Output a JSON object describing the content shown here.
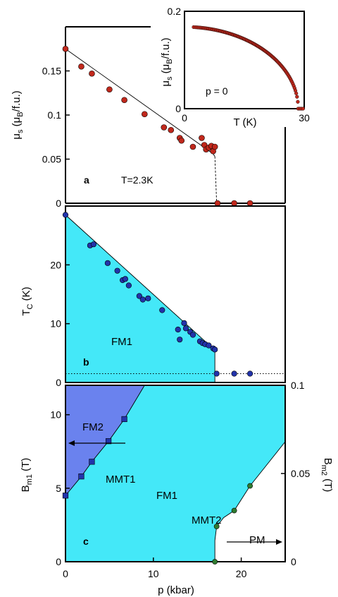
{
  "colors": {
    "fm1_fill": "#44e8f8",
    "fm2_fill": "#6a82ee",
    "red_marker": "#c0281c",
    "blue_marker": "#2233aa",
    "green_marker": "#2f7a2f",
    "line": "#000000"
  },
  "chart_data": [
    {
      "id": "panel-a",
      "type": "scatter",
      "panel_label": "a",
      "annotation": "T=2.3K",
      "xlabel": "",
      "ylabel": "μs (μB/f.u.)",
      "xlim": [
        0,
        25
      ],
      "ylim": [
        0,
        0.2
      ],
      "ytick_labels": [
        "0",
        "0.05",
        "0.1",
        "0.15"
      ],
      "points": [
        {
          "x": 0,
          "y": 0.175
        },
        {
          "x": 1.8,
          "y": 0.155
        },
        {
          "x": 3.0,
          "y": 0.147
        },
        {
          "x": 5.0,
          "y": 0.129
        },
        {
          "x": 6.7,
          "y": 0.117
        },
        {
          "x": 9.0,
          "y": 0.101
        },
        {
          "x": 11.2,
          "y": 0.086
        },
        {
          "x": 12.0,
          "y": 0.083
        },
        {
          "x": 13.0,
          "y": 0.074
        },
        {
          "x": 13.2,
          "y": 0.071
        },
        {
          "x": 14.5,
          "y": 0.064
        },
        {
          "x": 15.5,
          "y": 0.074
        },
        {
          "x": 15.8,
          "y": 0.066
        },
        {
          "x": 16.0,
          "y": 0.061
        },
        {
          "x": 16.3,
          "y": 0.063
        },
        {
          "x": 16.6,
          "y": 0.065
        },
        {
          "x": 16.8,
          "y": 0.059
        },
        {
          "x": 17.0,
          "y": 0.064
        },
        {
          "x": 17.3,
          "y": 0.0
        },
        {
          "x": 19.2,
          "y": 0.0
        },
        {
          "x": 21.0,
          "y": 0.0
        }
      ],
      "fit_line": [
        [
          0,
          0.175
        ],
        [
          16.8,
          0.056
        ],
        [
          17.0,
          0.053
        ]
      ],
      "dashed_drop": [
        [
          17.0,
          0.053
        ],
        [
          17.2,
          0.0
        ]
      ]
    },
    {
      "id": "panel-a-inset",
      "type": "scatter",
      "annotation": "p = 0",
      "xlabel": "T (K)",
      "ylabel": "μs (μB/f.u.)",
      "xlim": [
        0,
        30
      ],
      "ylim": [
        0,
        0.2
      ],
      "xtick_labels": [
        "0",
        "30"
      ],
      "ytick_labels": [
        "0",
        "0.2"
      ],
      "curve": {
        "Tc": 28.5,
        "m0": 0.168,
        "T_start": 2.3,
        "T_end": 28.4
      }
    },
    {
      "id": "panel-b",
      "type": "scatter",
      "panel_label": "b",
      "region_label": "FM1",
      "xlabel": "",
      "ylabel": "TC (K)",
      "xlim": [
        0,
        25
      ],
      "ylim": [
        0,
        30
      ],
      "ytick_labels": [
        "0",
        "10",
        "20"
      ],
      "fm1_boundary": [
        [
          0,
          28.5
        ],
        [
          17.0,
          5.5
        ],
        [
          17.0,
          0
        ]
      ],
      "dotted_level": 1.5,
      "points": [
        {
          "x": 0,
          "y": 28.5
        },
        {
          "x": 2.8,
          "y": 23.3
        },
        {
          "x": 3.2,
          "y": 23.5
        },
        {
          "x": 4.8,
          "y": 20.3
        },
        {
          "x": 5.9,
          "y": 19.0
        },
        {
          "x": 6.5,
          "y": 17.4
        },
        {
          "x": 6.8,
          "y": 17.6
        },
        {
          "x": 7.2,
          "y": 16.5
        },
        {
          "x": 8.4,
          "y": 14.7
        },
        {
          "x": 8.8,
          "y": 14.1
        },
        {
          "x": 9.4,
          "y": 14.3
        },
        {
          "x": 11.0,
          "y": 12.3
        },
        {
          "x": 12.8,
          "y": 9.0
        },
        {
          "x": 13.0,
          "y": 7.3
        },
        {
          "x": 13.5,
          "y": 10.1
        },
        {
          "x": 13.7,
          "y": 9.2
        },
        {
          "x": 14.2,
          "y": 8.6
        },
        {
          "x": 14.5,
          "y": 8.1
        },
        {
          "x": 15.3,
          "y": 7.0
        },
        {
          "x": 15.6,
          "y": 6.7
        },
        {
          "x": 15.9,
          "y": 6.5
        },
        {
          "x": 16.3,
          "y": 6.3
        },
        {
          "x": 16.8,
          "y": 5.8
        },
        {
          "x": 17.0,
          "y": 5.6
        },
        {
          "x": 17.2,
          "y": 1.5
        },
        {
          "x": 19.2,
          "y": 1.5
        },
        {
          "x": 21.0,
          "y": 1.5
        }
      ]
    },
    {
      "id": "panel-c",
      "type": "scatter",
      "panel_label": "c",
      "xlabel": "p (kbar)",
      "ylabel": "Bm1 (T)",
      "ylabel_right": "Bm2 (T)",
      "xlim": [
        0,
        25
      ],
      "ylim": [
        0,
        12
      ],
      "ylim_right": [
        0,
        0.1
      ],
      "xtick_labels": [
        "0",
        "10",
        "20"
      ],
      "ytick_labels": [
        "0",
        "5",
        "10"
      ],
      "ytick_labels_right": [
        "0",
        "0.05",
        "0.1"
      ],
      "region_labels": [
        "FM2",
        "MMT1",
        "FM1",
        "MMT2",
        "PM"
      ],
      "mmt1_points": [
        {
          "x": 0,
          "y": 4.5
        },
        {
          "x": 1.8,
          "y": 5.8
        },
        {
          "x": 3.0,
          "y": 6.8
        },
        {
          "x": 4.9,
          "y": 8.2
        },
        {
          "x": 6.7,
          "y": 9.7
        }
      ],
      "mmt1_line": [
        [
          0,
          4.5
        ],
        [
          1.8,
          5.8
        ],
        [
          3.0,
          6.8
        ],
        [
          4.9,
          8.2
        ],
        [
          6.7,
          9.7
        ],
        [
          9.0,
          12.0
        ]
      ],
      "mmt2_points": [
        {
          "x": 17.0,
          "y": 0.0
        },
        {
          "x": 17.2,
          "y": 0.02
        },
        {
          "x": 19.2,
          "y": 0.029
        },
        {
          "x": 21.0,
          "y": 0.043
        }
      ],
      "mmt2_line": [
        [
          17.0,
          0.0
        ],
        [
          17.0,
          0.012
        ],
        [
          17.2,
          0.02
        ],
        [
          18.0,
          0.025
        ],
        [
          19.2,
          0.029
        ],
        [
          21.0,
          0.043
        ],
        [
          25.0,
          0.068
        ]
      ]
    }
  ]
}
